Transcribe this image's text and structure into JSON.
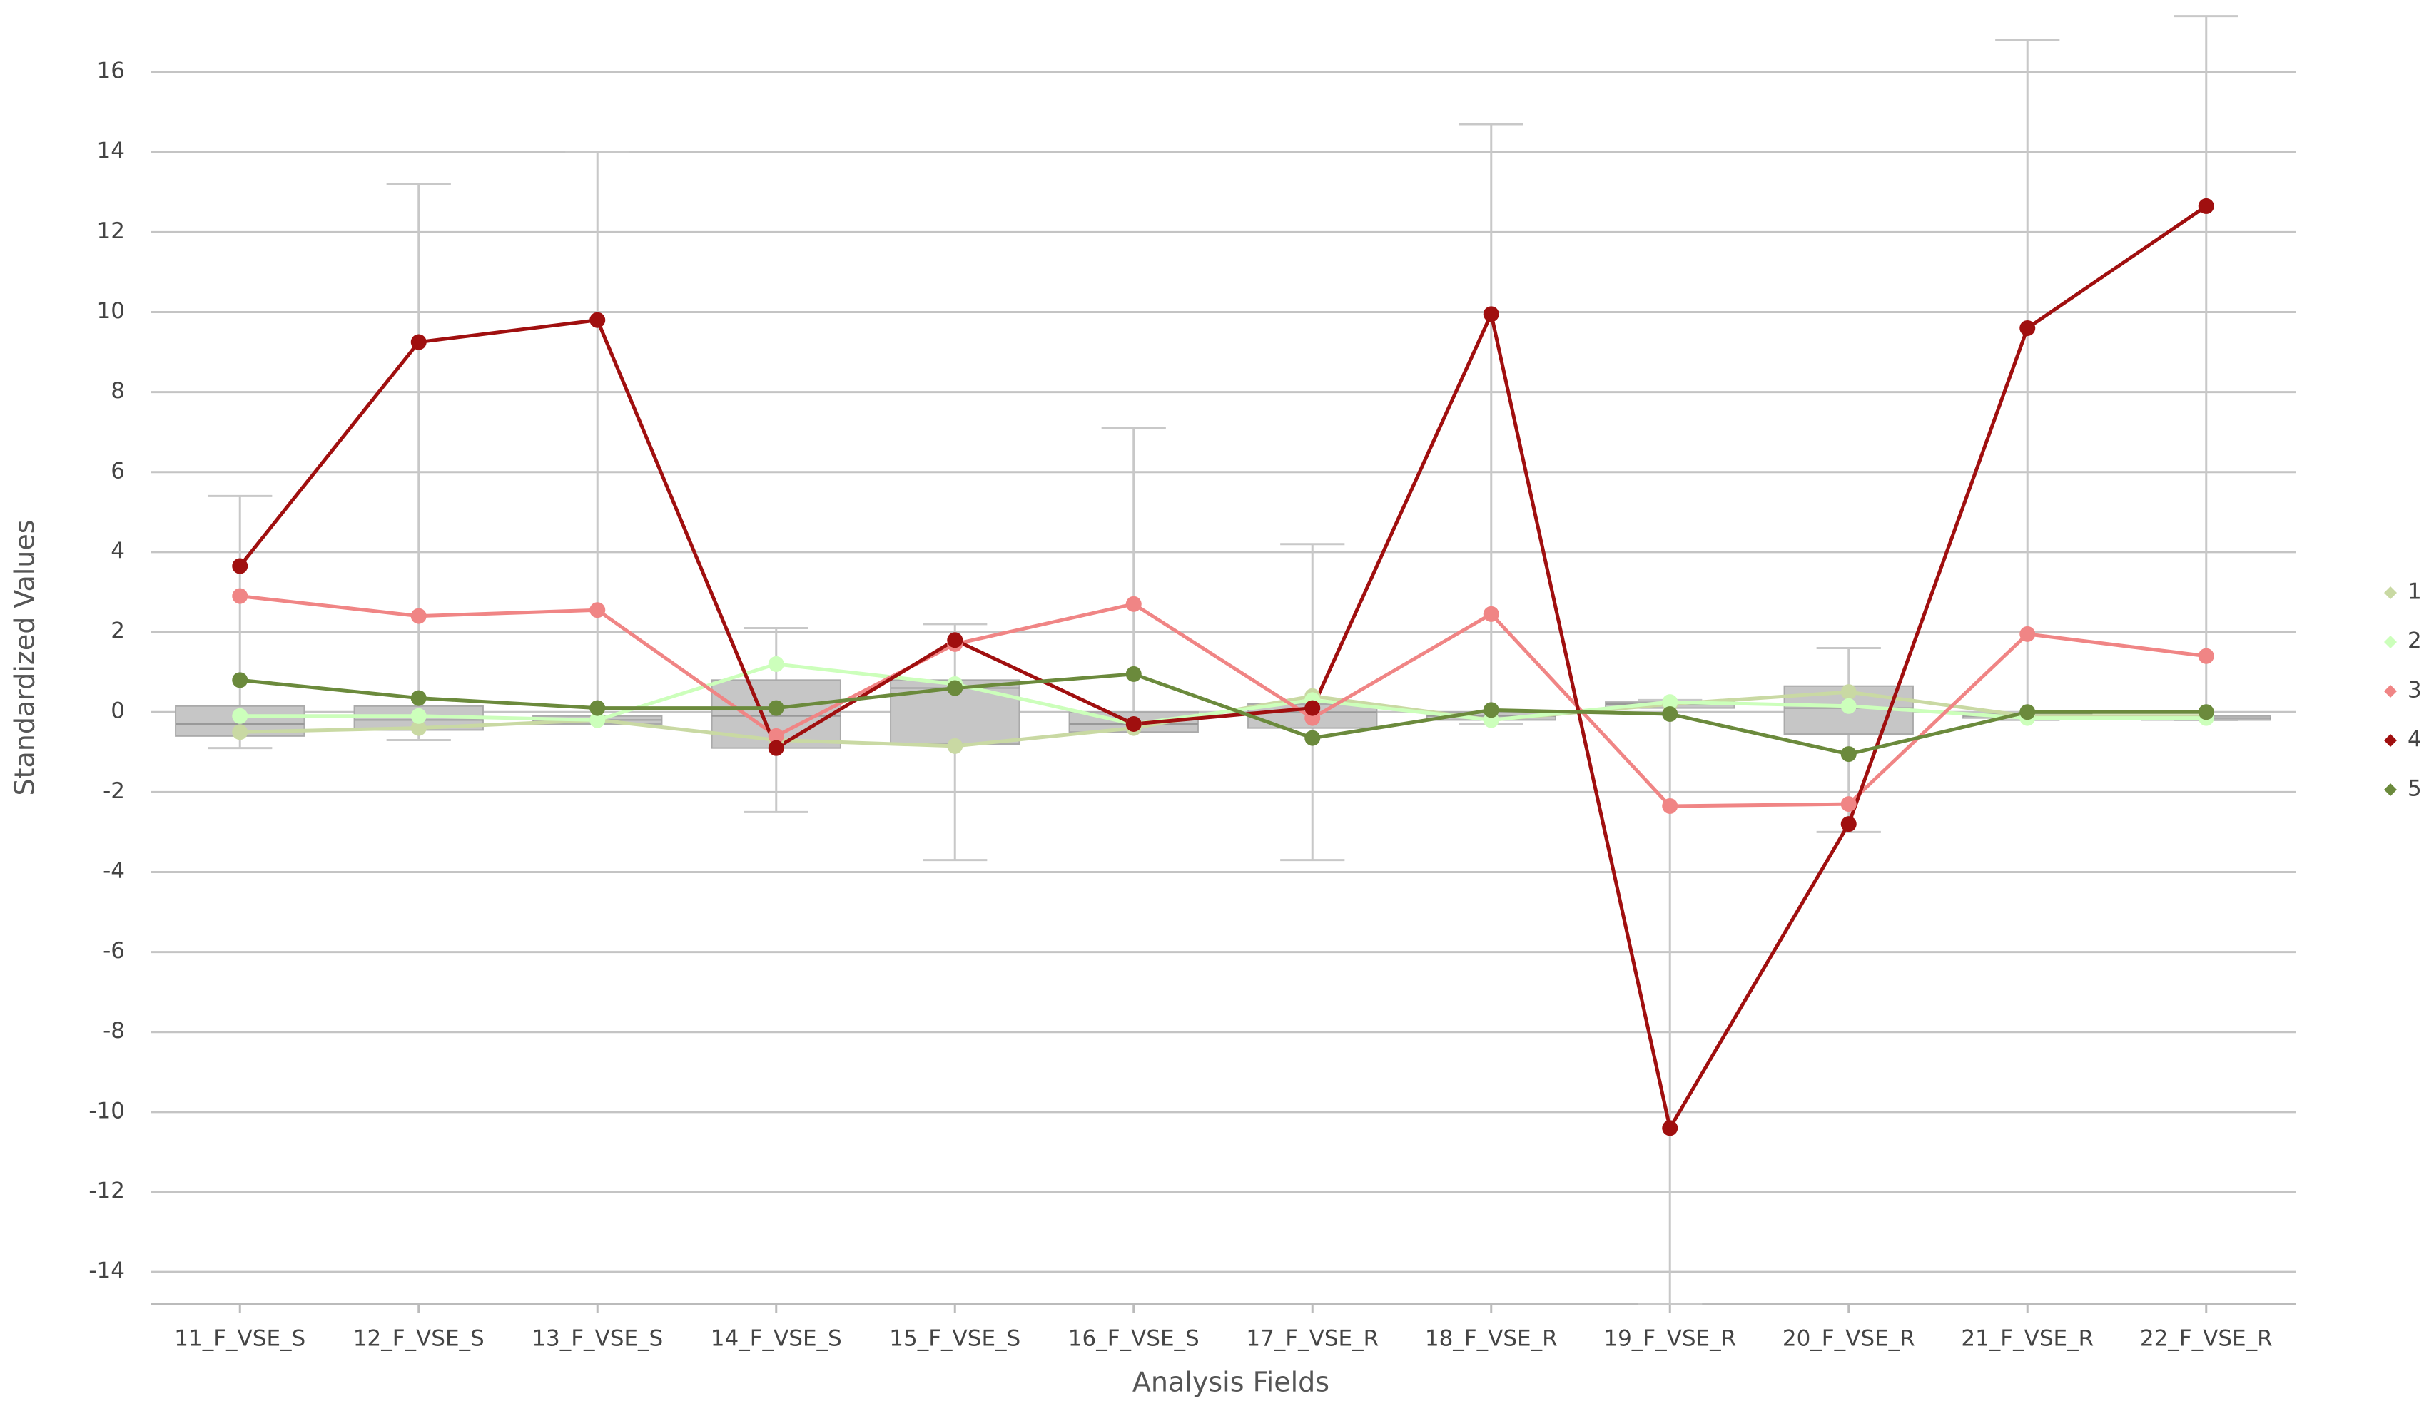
{
  "chart_data": {
    "type": "boxline",
    "x_label": "Analysis Fields",
    "y_label": "Standardized Values",
    "categories": [
      "11_F_VSE_S",
      "12_F_VSE_S",
      "13_F_VSE_S",
      "14_F_VSE_S",
      "15_F_VSE_S",
      "16_F_VSE_S",
      "17_F_VSE_R",
      "18_F_VSE_R",
      "19_F_VSE_R",
      "20_F_VSE_R",
      "21_F_VSE_R",
      "22_F_VSE_R"
    ],
    "boxes": [
      {
        "low": -0.9,
        "q1": -0.6,
        "median": -0.3,
        "q3": 0.15,
        "high": 5.4
      },
      {
        "low": -0.7,
        "q1": -0.45,
        "median": -0.2,
        "q3": 0.15,
        "high": 13.2
      },
      {
        "low": -0.3,
        "q1": -0.3,
        "median": -0.2,
        "q3": -0.1,
        "high": 14
      },
      {
        "low": -2.5,
        "q1": -0.9,
        "median": -0.1,
        "q3": 0.8,
        "high": 2.1
      },
      {
        "low": -3.7,
        "q1": -0.8,
        "median": 0.6,
        "q3": 0.8,
        "high": 2.2
      },
      {
        "low": -0.5,
        "q1": -0.5,
        "median": -0.3,
        "q3": 0,
        "high": 7.1
      },
      {
        "low": -3.7,
        "q1": -0.4,
        "median": 0,
        "q3": 0.2,
        "high": 4.2
      },
      {
        "low": -0.3,
        "q1": -0.2,
        "median": -0.1,
        "q3": 0,
        "high": 14.7
      },
      {
        "low": -14.8,
        "q1": 0.1,
        "median": 0.2,
        "q3": 0.25,
        "high": 0.3
      },
      {
        "low": -3,
        "q1": -0.55,
        "median": 0.1,
        "q3": 0.65,
        "high": 1.6
      },
      {
        "low": -0.2,
        "q1": -0.15,
        "median": -0.1,
        "q3": -0.05,
        "high": 16.8
      },
      {
        "low": -0.2,
        "q1": -0.2,
        "median": -0.15,
        "q3": -0.1,
        "high": 17.4
      }
    ],
    "box_color": "#c6c6c6",
    "series": [
      {
        "name": "1",
        "color": "#c9d9a3",
        "values": [
          -0.5,
          -0.4,
          -0.2,
          -0.7,
          -0.85,
          -0.4,
          0.4,
          -0.2,
          0.2,
          0.5,
          -0.1,
          -0.1
        ]
      },
      {
        "name": "2",
        "color": "#ccffbb",
        "values": [
          -0.1,
          -0.1,
          -0.2,
          1.2,
          0.7,
          -0.3,
          0.3,
          -0.2,
          0.25,
          0.15,
          -0.15,
          -0.15
        ]
      },
      {
        "name": "3",
        "color": "#f08585",
        "values": [
          2.9,
          2.4,
          2.55,
          -0.6,
          1.7,
          2.7,
          -0.15,
          2.45,
          -2.35,
          -2.3,
          1.95,
          1.4
        ]
      },
      {
        "name": "4",
        "color": "#a00f0f",
        "values": [
          3.65,
          9.25,
          9.8,
          -0.9,
          1.8,
          -0.3,
          0.1,
          9.95,
          -10.4,
          -2.8,
          9.6,
          12.65
        ]
      },
      {
        "name": "5",
        "color": "#6b8a3c",
        "values": [
          0.8,
          0.35,
          0.1,
          0.1,
          0.6,
          0.95,
          -0.65,
          0.05,
          -0.05,
          -1.05,
          0,
          0
        ]
      }
    ],
    "ylim": [
      -14.8,
      17.5
    ],
    "yticks": [
      -14,
      -12,
      -10,
      -8,
      -6,
      -4,
      -2,
      0,
      2,
      4,
      6,
      8,
      10,
      12,
      14,
      16
    ],
    "grid": true,
    "legend": "right"
  }
}
